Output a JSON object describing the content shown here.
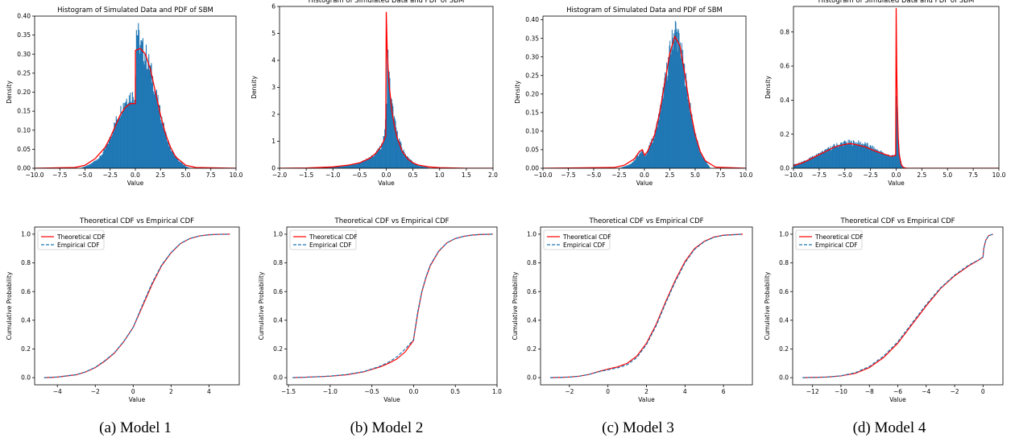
{
  "colors": {
    "hist": "#1f77b4",
    "pdf": "#ff0000",
    "cdf_theoretical": "#ff0000",
    "cdf_empirical": "#1f77b4"
  },
  "captions": [
    "(a) Model 1",
    "(b) Model 2",
    "(c) Model 3",
    "(d) Model 4"
  ],
  "chart_data": [
    {
      "type": "bar",
      "panel": "Model 1 histogram",
      "title": "Histogram of Simulated Data and PDF of SBM",
      "xlabel": "Value",
      "ylabel": "Density",
      "xlim": [
        -10,
        10
      ],
      "ylim": [
        0,
        0.4
      ],
      "xticks": [
        -10,
        -7.5,
        -5,
        -2.5,
        0,
        2.5,
        5,
        7.5,
        10
      ],
      "xtick_labels": [
        "−10.0",
        "−7.5",
        "−5.0",
        "−2.5",
        "0.0",
        "2.5",
        "5.0",
        "7.5",
        "10.0"
      ],
      "yticks": [
        0,
        0.05,
        0.1,
        0.15,
        0.2,
        0.25,
        0.3,
        0.35,
        0.4
      ],
      "ytick_labels": [
        "0.00",
        "0.05",
        "0.10",
        "0.15",
        "0.20",
        "0.25",
        "0.30",
        "0.35",
        "0.40"
      ],
      "histogram_envelope": {
        "x": [
          -5.5,
          -4.5,
          -3.5,
          -3,
          -2.5,
          -2,
          -1.5,
          -1,
          -0.5,
          0,
          0.1,
          0.5,
          1,
          1.5,
          2,
          2.5,
          3,
          3.5,
          4,
          4.5,
          5,
          5.5
        ],
        "density": [
          0,
          0.01,
          0.03,
          0.05,
          0.08,
          0.12,
          0.15,
          0.18,
          0.19,
          0.19,
          0.37,
          0.32,
          0.3,
          0.26,
          0.2,
          0.14,
          0.09,
          0.05,
          0.03,
          0.015,
          0.005,
          0
        ]
      },
      "pdf_curve": {
        "x": [
          -10,
          -6,
          -5,
          -4,
          -3,
          -2.5,
          -2,
          -1.5,
          -1,
          -0.5,
          0,
          0.01,
          0.5,
          1,
          1.5,
          2,
          2.5,
          3,
          3.5,
          4,
          5,
          6,
          10
        ],
        "y": [
          0,
          0.002,
          0.008,
          0.025,
          0.055,
          0.08,
          0.11,
          0.14,
          0.16,
          0.17,
          0.17,
          0.31,
          0.315,
          0.3,
          0.26,
          0.2,
          0.14,
          0.09,
          0.055,
          0.03,
          0.008,
          0.002,
          0
        ]
      }
    },
    {
      "type": "bar",
      "panel": "Model 2 histogram",
      "title": "Histogram of Simulated Data and PDF of SBM",
      "xlabel": "Value",
      "ylabel": "Density",
      "xlim": [
        -2,
        2
      ],
      "ylim": [
        0,
        6
      ],
      "xticks": [
        -2,
        -1.5,
        -1,
        -0.5,
        0,
        0.5,
        1,
        1.5,
        2
      ],
      "xtick_labels": [
        "−2.0",
        "−1.5",
        "−1.0",
        "−0.5",
        "0.0",
        "0.5",
        "1.0",
        "1.5",
        "2.0"
      ],
      "yticks": [
        0,
        1,
        2,
        3,
        4,
        5,
        6
      ],
      "ytick_labels": [
        "0",
        "1",
        "2",
        "3",
        "4",
        "5",
        "6"
      ],
      "histogram_envelope": {
        "x": [
          -1.2,
          -0.8,
          -0.5,
          -0.3,
          -0.2,
          -0.1,
          -0.05,
          0,
          0.02,
          0.05,
          0.1,
          0.15,
          0.2,
          0.3,
          0.4,
          0.5,
          0.6,
          0.8
        ],
        "density": [
          0.02,
          0.08,
          0.2,
          0.4,
          0.55,
          0.8,
          1.1,
          2.0,
          4.4,
          3.4,
          2.4,
          1.8,
          1.3,
          0.7,
          0.4,
          0.22,
          0.1,
          0.02
        ]
      },
      "pdf_curve": {
        "x": [
          -2,
          -1.5,
          -1,
          -0.7,
          -0.5,
          -0.3,
          -0.2,
          -0.1,
          -0.05,
          -0.01,
          0,
          0.02,
          0.05,
          0.1,
          0.15,
          0.2,
          0.3,
          0.4,
          0.5,
          0.6,
          0.8,
          1.0,
          1.5,
          2
        ],
        "y": [
          0,
          0.01,
          0.05,
          0.12,
          0.2,
          0.38,
          0.55,
          0.8,
          1.0,
          1.2,
          5.8,
          4.2,
          3.2,
          2.2,
          1.6,
          1.15,
          0.62,
          0.35,
          0.2,
          0.12,
          0.05,
          0.02,
          0,
          0
        ]
      }
    },
    {
      "type": "bar",
      "panel": "Model 3 histogram",
      "title": "Histogram of Simulated Data and PDF of SBM",
      "xlabel": "Value",
      "ylabel": "Density",
      "xlim": [
        -10,
        10
      ],
      "ylim": [
        0,
        0.41
      ],
      "xticks": [
        -10,
        -7.5,
        -5,
        -2.5,
        0,
        2.5,
        5,
        7.5,
        10
      ],
      "xtick_labels": [
        "−10.0",
        "−7.5",
        "−5.0",
        "−2.5",
        "0.0",
        "2.5",
        "5.0",
        "7.5",
        "10.0"
      ],
      "yticks": [
        0,
        0.05,
        0.1,
        0.15,
        0.2,
        0.25,
        0.3,
        0.35,
        0.4
      ],
      "ytick_labels": [
        "0.00",
        "0.05",
        "0.10",
        "0.15",
        "0.20",
        "0.25",
        "0.30",
        "0.35",
        "0.40"
      ],
      "histogram_envelope": {
        "x": [
          -2.5,
          -1.5,
          -1,
          -0.5,
          -0.25,
          0,
          0.5,
          1,
          1.5,
          2,
          2.5,
          3,
          3.5,
          4,
          4.5,
          5,
          5.5,
          6,
          6.5
        ],
        "density": [
          0,
          0.01,
          0.02,
          0.04,
          0.05,
          0.03,
          0.06,
          0.09,
          0.15,
          0.23,
          0.31,
          0.38,
          0.33,
          0.25,
          0.16,
          0.09,
          0.04,
          0.02,
          0
        ]
      },
      "pdf_curve": {
        "x": [
          -10,
          -3,
          -2,
          -1,
          -0.5,
          -0.2,
          0,
          0.3,
          0.7,
          1,
          1.5,
          2,
          2.5,
          3,
          3.5,
          4,
          4.5,
          5,
          5.5,
          6,
          7,
          10
        ],
        "y": [
          0,
          0.002,
          0.008,
          0.025,
          0.045,
          0.05,
          0.035,
          0.045,
          0.07,
          0.09,
          0.15,
          0.23,
          0.31,
          0.355,
          0.33,
          0.25,
          0.16,
          0.09,
          0.045,
          0.02,
          0.003,
          0
        ]
      }
    },
    {
      "type": "bar",
      "panel": "Model 4 histogram",
      "title": "Histogram of Simulated Data and PDF of SBM",
      "xlabel": "Value",
      "ylabel": "Density",
      "xlim": [
        -10,
        10
      ],
      "ylim": [
        0,
        0.95
      ],
      "xticks": [
        -10,
        -7.5,
        -5,
        -2.5,
        0,
        2.5,
        5,
        7.5,
        10
      ],
      "xtick_labels": [
        "−10.0",
        "−7.5",
        "−5.0",
        "−2.5",
        "0.0",
        "2.5",
        "5.0",
        "7.5",
        "10.0"
      ],
      "yticks": [
        0,
        0.2,
        0.4,
        0.6,
        0.8
      ],
      "ytick_labels": [
        "0.0",
        "0.2",
        "0.4",
        "0.6",
        "0.8"
      ],
      "histogram_envelope": {
        "x": [
          -10,
          -9,
          -8,
          -7,
          -6,
          -5,
          -4,
          -3,
          -2,
          -1,
          -0.3,
          -0.05,
          0,
          0.05,
          0.2,
          0.4,
          0.6
        ],
        "density": [
          0.02,
          0.04,
          0.07,
          0.1,
          0.13,
          0.15,
          0.15,
          0.14,
          0.11,
          0.08,
          0.07,
          0.08,
          0.5,
          0.35,
          0.15,
          0.05,
          0.01
        ]
      },
      "pdf_curve": {
        "x": [
          -10,
          -9,
          -8,
          -7,
          -6,
          -5,
          -4.5,
          -4,
          -3,
          -2,
          -1,
          -0.5,
          -0.05,
          0,
          0.05,
          0.1,
          0.2,
          0.3,
          0.5,
          0.7,
          1,
          10
        ],
        "y": [
          0.015,
          0.035,
          0.065,
          0.095,
          0.125,
          0.14,
          0.145,
          0.14,
          0.125,
          0.1,
          0.08,
          0.07,
          0.075,
          0.94,
          0.6,
          0.4,
          0.18,
          0.08,
          0.02,
          0.005,
          0,
          0
        ]
      }
    },
    {
      "type": "line",
      "panel": "Model 1 CDF",
      "title": "Theoretical CDF vs Empirical CDF",
      "xlabel": "Value",
      "ylabel": "Cumulative Probability",
      "xlim": [
        -5.2,
        5.6
      ],
      "ylim": [
        -0.05,
        1.05
      ],
      "xticks": [
        -4,
        -2,
        0,
        2,
        4
      ],
      "xtick_labels": [
        "−4",
        "−2",
        "0",
        "2",
        "4"
      ],
      "yticks": [
        0,
        0.2,
        0.4,
        0.6,
        0.8,
        1
      ],
      "ytick_labels": [
        "0.0",
        "0.2",
        "0.4",
        "0.6",
        "0.8",
        "1.0"
      ],
      "legend": "top-left",
      "series": [
        {
          "name": "Theoretical CDF",
          "style": "solid",
          "x": [
            -4.7,
            -4,
            -3,
            -2.5,
            -2,
            -1.5,
            -1,
            -0.5,
            0,
            0.5,
            1,
            1.5,
            2,
            2.5,
            3,
            3.5,
            4,
            4.5,
            5.1
          ],
          "y": [
            0,
            0.004,
            0.02,
            0.04,
            0.07,
            0.115,
            0.17,
            0.25,
            0.35,
            0.5,
            0.65,
            0.78,
            0.87,
            0.935,
            0.97,
            0.988,
            0.996,
            0.999,
            1
          ]
        },
        {
          "name": "Empirical CDF",
          "style": "dashed",
          "x": [
            -4.7,
            -4,
            -3,
            -2.5,
            -2,
            -1.5,
            -1,
            -0.5,
            0,
            0.5,
            1,
            1.5,
            2,
            2.5,
            3,
            3.5,
            4,
            4.5,
            5.1
          ],
          "y": [
            0,
            0.004,
            0.021,
            0.041,
            0.072,
            0.118,
            0.172,
            0.252,
            0.35,
            0.51,
            0.66,
            0.785,
            0.872,
            0.936,
            0.971,
            0.988,
            0.996,
            0.999,
            1
          ]
        }
      ]
    },
    {
      "type": "line",
      "panel": "Model 2 CDF",
      "title": "Theoretical CDF vs Empirical CDF",
      "xlabel": "Value",
      "ylabel": "Cumulative Probability",
      "xlim": [
        -1.52,
        1.0
      ],
      "ylim": [
        -0.05,
        1.05
      ],
      "xticks": [
        -1.5,
        -1,
        -0.5,
        0,
        0.5,
        1
      ],
      "xtick_labels": [
        "−1.5",
        "−1.0",
        "−0.5",
        "0.0",
        "0.5",
        "1.0"
      ],
      "yticks": [
        0,
        0.2,
        0.4,
        0.6,
        0.8,
        1
      ],
      "ytick_labels": [
        "0.0",
        "0.2",
        "0.4",
        "0.6",
        "0.8",
        "1.0"
      ],
      "legend": "top-left",
      "series": [
        {
          "name": "Theoretical CDF",
          "style": "solid",
          "x": [
            -1.45,
            -1.2,
            -1,
            -0.8,
            -0.6,
            -0.4,
            -0.3,
            -0.2,
            -0.1,
            0,
            0.001,
            0.05,
            0.1,
            0.15,
            0.2,
            0.3,
            0.4,
            0.5,
            0.6,
            0.7,
            0.8,
            0.95
          ],
          "y": [
            0,
            0.005,
            0.01,
            0.02,
            0.04,
            0.075,
            0.1,
            0.13,
            0.18,
            0.26,
            0.27,
            0.45,
            0.6,
            0.7,
            0.78,
            0.88,
            0.94,
            0.97,
            0.985,
            0.994,
            0.998,
            1
          ]
        },
        {
          "name": "Empirical CDF",
          "style": "dashed",
          "x": [
            -1.45,
            -1.2,
            -1,
            -0.8,
            -0.6,
            -0.4,
            -0.3,
            -0.2,
            -0.1,
            0,
            0.001,
            0.05,
            0.1,
            0.15,
            0.2,
            0.3,
            0.4,
            0.5,
            0.6,
            0.7,
            0.8,
            0.95
          ],
          "y": [
            0,
            0.005,
            0.011,
            0.022,
            0.042,
            0.08,
            0.108,
            0.145,
            0.2,
            0.265,
            0.275,
            0.46,
            0.605,
            0.705,
            0.785,
            0.882,
            0.94,
            0.97,
            0.985,
            0.994,
            0.998,
            1
          ]
        }
      ]
    },
    {
      "type": "line",
      "panel": "Model 3 CDF",
      "title": "Theoretical CDF vs Empirical CDF",
      "xlabel": "Value",
      "ylabel": "Cumulative Probability",
      "xlim": [
        -3.5,
        7.5
      ],
      "ylim": [
        -0.05,
        1.05
      ],
      "xticks": [
        -2,
        0,
        2,
        4,
        6
      ],
      "xtick_labels": [
        "−2",
        "0",
        "2",
        "4",
        "6"
      ],
      "yticks": [
        0,
        0.2,
        0.4,
        0.6,
        0.8,
        1
      ],
      "ytick_labels": [
        "0.0",
        "0.2",
        "0.4",
        "0.6",
        "0.8",
        "1.0"
      ],
      "legend": "top-left",
      "series": [
        {
          "name": "Theoretical CDF",
          "style": "solid",
          "x": [
            -3,
            -2,
            -1.5,
            -1,
            -0.5,
            0,
            0.5,
            1,
            1.5,
            2,
            2.5,
            3,
            3.5,
            4,
            4.5,
            5,
            5.5,
            6,
            7
          ],
          "y": [
            0,
            0.004,
            0.01,
            0.022,
            0.042,
            0.06,
            0.075,
            0.1,
            0.15,
            0.24,
            0.37,
            0.53,
            0.68,
            0.81,
            0.9,
            0.95,
            0.98,
            0.993,
            1
          ]
        },
        {
          "name": "Empirical CDF",
          "style": "dashed",
          "x": [
            -3,
            -2,
            -1.5,
            -1,
            -0.5,
            0,
            0.5,
            1,
            1.5,
            2,
            2.5,
            3,
            3.5,
            4,
            4.5,
            5,
            5.5,
            6,
            7
          ],
          "y": [
            0,
            0.004,
            0.01,
            0.022,
            0.04,
            0.055,
            0.068,
            0.09,
            0.14,
            0.23,
            0.36,
            0.52,
            0.67,
            0.8,
            0.895,
            0.948,
            0.978,
            0.992,
            1
          ]
        }
      ]
    },
    {
      "type": "line",
      "panel": "Model 4 CDF",
      "title": "Theoretical CDF vs Empirical CDF",
      "xlabel": "Value",
      "ylabel": "Cumulative Probability",
      "xlim": [
        -13.4,
        1.4
      ],
      "ylim": [
        -0.05,
        1.05
      ],
      "xticks": [
        -12,
        -10,
        -8,
        -6,
        -4,
        -2,
        0
      ],
      "xtick_labels": [
        "−12",
        "−10",
        "−8",
        "−6",
        "−4",
        "−2",
        "0"
      ],
      "yticks": [
        0,
        0.2,
        0.4,
        0.6,
        0.8,
        1
      ],
      "ytick_labels": [
        "0.0",
        "0.2",
        "0.4",
        "0.6",
        "0.8",
        "1.0"
      ],
      "legend": "top-left",
      "series": [
        {
          "name": "Theoretical CDF",
          "style": "solid",
          "x": [
            -12.7,
            -11,
            -10,
            -9,
            -8,
            -7,
            -6,
            -5,
            -4,
            -3,
            -2,
            -1,
            -0.3,
            0,
            0.05,
            0.2,
            0.4,
            0.7
          ],
          "y": [
            0,
            0.004,
            0.012,
            0.03,
            0.07,
            0.14,
            0.24,
            0.37,
            0.5,
            0.62,
            0.71,
            0.78,
            0.82,
            0.84,
            0.9,
            0.96,
            0.99,
            1
          ]
        },
        {
          "name": "Empirical CDF",
          "style": "dashed",
          "x": [
            -12.7,
            -11,
            -10,
            -9,
            -8,
            -7,
            -6,
            -5,
            -4,
            -3,
            -2,
            -1,
            -0.3,
            0,
            0.05,
            0.2,
            0.4,
            0.7
          ],
          "y": [
            0,
            0.004,
            0.013,
            0.034,
            0.078,
            0.15,
            0.25,
            0.38,
            0.51,
            0.625,
            0.715,
            0.785,
            0.822,
            0.84,
            0.9,
            0.96,
            0.99,
            1
          ]
        }
      ]
    }
  ]
}
